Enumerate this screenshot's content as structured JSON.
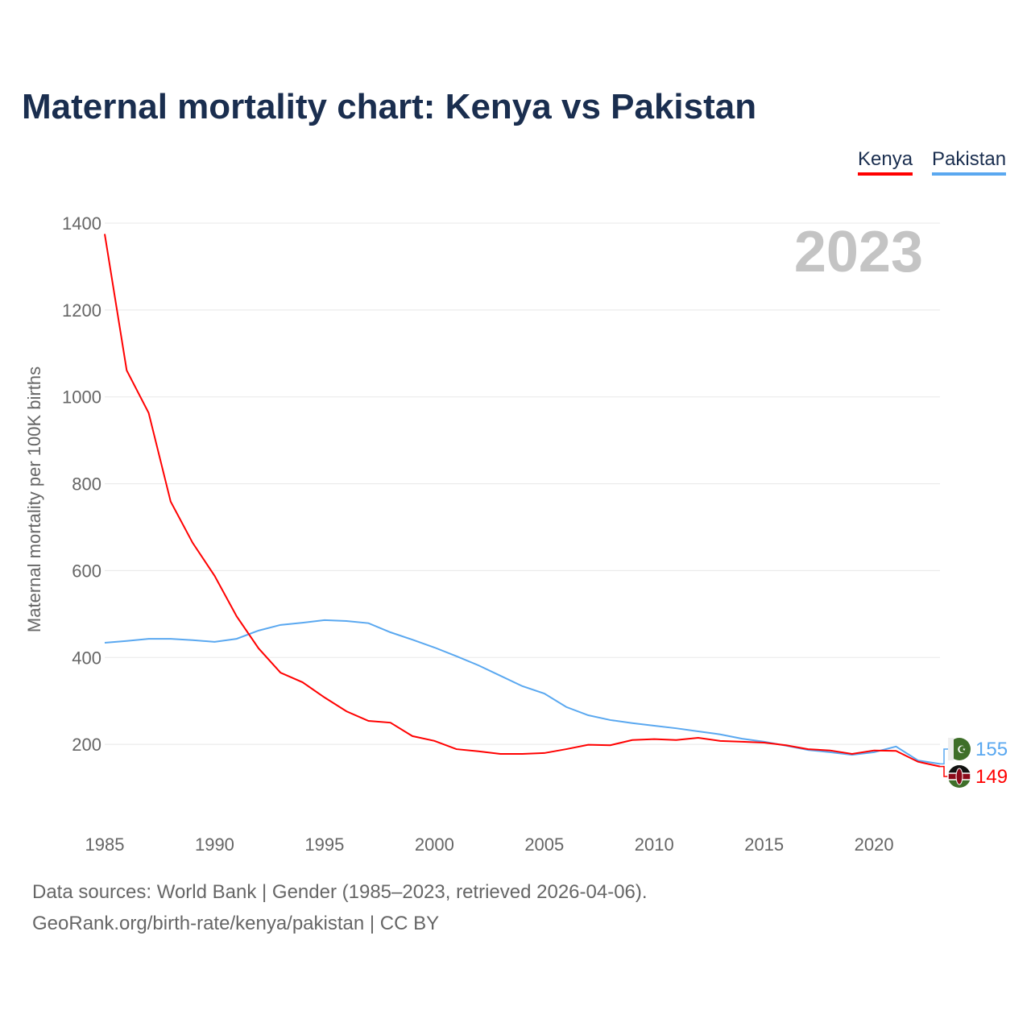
{
  "title": "Maternal mortality chart: Kenya vs Pakistan",
  "year_label": "2023",
  "source_line1": "Data sources: World Bank | Gender (1985–2023, retrieved 2026-04-06).",
  "source_line2": "GeoRank.org/birth-rate/kenya/pakistan | CC BY",
  "chart_data": {
    "type": "line",
    "title": "Maternal mortality chart: Kenya vs Pakistan",
    "ylabel": "Maternal mortality per 100K births",
    "xlabel": "",
    "xlim": [
      1985,
      2023
    ],
    "ylim": [
      0,
      1400
    ],
    "yticks": [
      200,
      400,
      600,
      800,
      1000,
      1200,
      1400
    ],
    "xticks": [
      1985,
      1990,
      1995,
      2000,
      2005,
      2010,
      2015,
      2020
    ],
    "grid": true,
    "legend": "top-right",
    "x": [
      1985,
      1986,
      1987,
      1988,
      1989,
      1990,
      1991,
      1992,
      1993,
      1994,
      1995,
      1996,
      1997,
      1998,
      1999,
      2000,
      2001,
      2002,
      2003,
      2004,
      2005,
      2006,
      2007,
      2008,
      2009,
      2010,
      2011,
      2012,
      2013,
      2014,
      2015,
      2016,
      2017,
      2018,
      2019,
      2020,
      2021,
      2022,
      2023
    ],
    "series": [
      {
        "name": "Kenya",
        "color": "#ff0000",
        "end_label": "149",
        "values": [
          1375,
          1061,
          963,
          759,
          664,
          588,
          495,
          421,
          365,
          343,
          308,
          276,
          254,
          250,
          219,
          208,
          189,
          184,
          178,
          178,
          180,
          189,
          199,
          198,
          210,
          212,
          210,
          215,
          208,
          206,
          204,
          198,
          189,
          186,
          178,
          186,
          185,
          160,
          149
        ]
      },
      {
        "name": "Pakistan",
        "color": "#5aa8f0",
        "end_label": "155",
        "values": [
          434,
          438,
          443,
          443,
          440,
          436,
          443,
          462,
          475,
          480,
          486,
          484,
          479,
          458,
          441,
          423,
          403,
          382,
          358,
          334,
          317,
          286,
          267,
          256,
          249,
          243,
          237,
          230,
          223,
          213,
          206,
          197,
          187,
          182,
          176,
          182,
          195,
          163,
          155
        ]
      }
    ]
  }
}
